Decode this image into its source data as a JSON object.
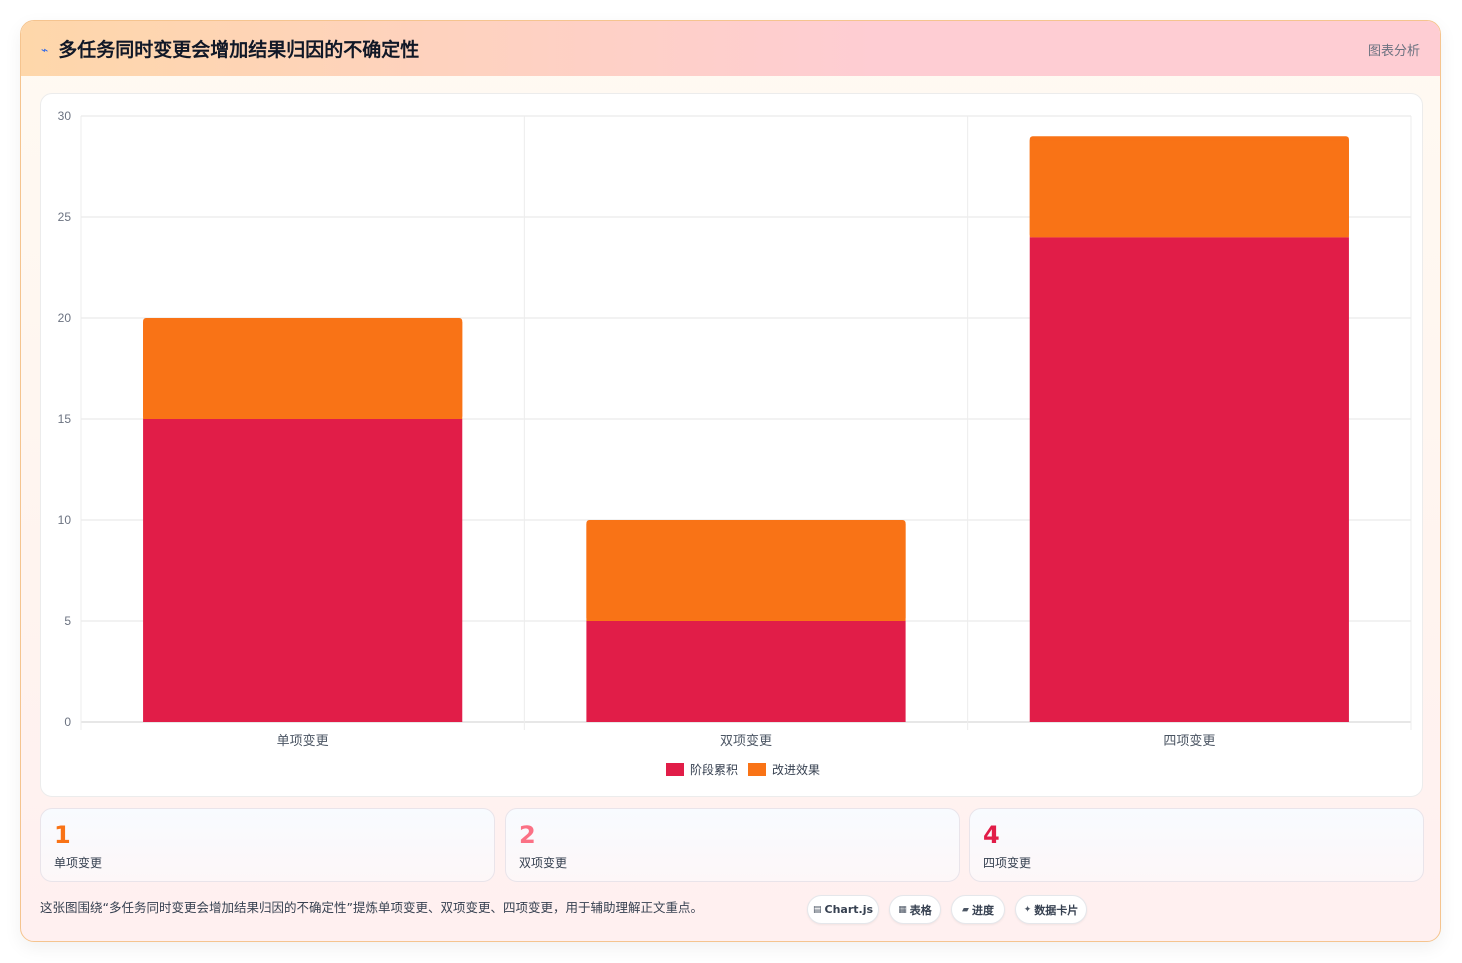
{
  "header": {
    "icon": "arrow-icon",
    "title": "多任务同时变更会增加结果归因的不确定性",
    "tag": "图表分析"
  },
  "chart_data": {
    "type": "bar",
    "stacked": true,
    "categories": [
      "单项变更",
      "双项变更",
      "四项变更"
    ],
    "series": [
      {
        "name": "阶段累积",
        "values": [
          15,
          5,
          24
        ],
        "color": "#e11d48"
      },
      {
        "name": "改进效果",
        "values": [
          5,
          5,
          5
        ],
        "color": "#f97316"
      }
    ],
    "ylim": [
      0,
      30
    ],
    "yticks": [
      0,
      5,
      10,
      15,
      20,
      25,
      30
    ],
    "grid": true,
    "legend": "bottom"
  },
  "stats": [
    {
      "value": "1",
      "label": "单项变更",
      "color": "#f97316"
    },
    {
      "value": "2",
      "label": "双项变更",
      "color": "#fb7185"
    },
    {
      "value": "4",
      "label": "四项变更",
      "color": "#e11d48"
    }
  ],
  "caption": "这张图围绕“多任务同时变更会增加结果归因的不确定性”提炼单项变更、双项变更、四项变更，用于辅助理解正文重点。",
  "chips": [
    {
      "icon": "chart-icon",
      "glyph": "▤",
      "label": "Chart.js"
    },
    {
      "icon": "table-icon",
      "glyph": "▦",
      "label": "表格"
    },
    {
      "icon": "progress-icon",
      "glyph": "▰",
      "label": "进度"
    },
    {
      "icon": "sparkle-icon",
      "glyph": "✦",
      "label": "数据卡片"
    }
  ]
}
